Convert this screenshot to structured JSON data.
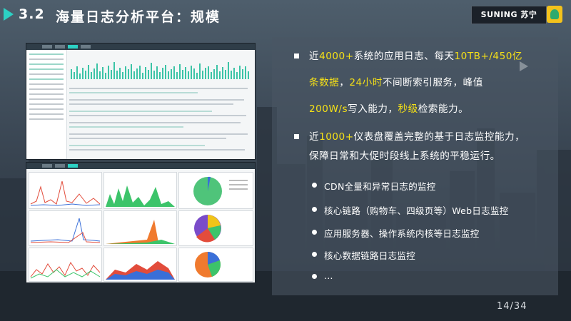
{
  "header": {
    "section_number": "3.2",
    "title": "海量日志分析平台：规模",
    "brand": "SUNING 苏宁"
  },
  "bullets": [
    {
      "lines": [
        [
          {
            "t": "近"
          },
          {
            "t": "4000+",
            "hl": true
          },
          {
            "t": "系统的应用日志、每天"
          },
          {
            "t": "10TB+/450亿",
            "hl": true
          }
        ],
        [
          {
            "t": "条数据",
            "hl": true
          },
          {
            "t": "，"
          },
          {
            "t": "24小时",
            "hl": true
          },
          {
            "t": "不间断索引服务，峰值"
          }
        ],
        [
          {
            "t": "200W/s",
            "hl": true
          },
          {
            "t": "写入能力，"
          },
          {
            "t": "秒级",
            "hl": true
          },
          {
            "t": "检索能力。"
          }
        ]
      ]
    },
    {
      "lines": [
        [
          {
            "t": "近"
          },
          {
            "t": "1000+",
            "hl": true
          },
          {
            "t": "仪表盘覆盖完整的基于日志监控能力，"
          }
        ],
        [
          {
            "t": "保障日常和大促时段线上系统的平稳运行。"
          }
        ]
      ]
    }
  ],
  "sub_bullets": [
    "CDN全量和异常日志的监控",
    "核心链路（购物车、四级页等）Web日志监控",
    "应用服务器、操作系统内核等日志监控",
    "核心数据链路日志监控",
    "…"
  ],
  "page_indicator": "14/34",
  "colors": {
    "highlight": "#f5e017",
    "accent": "#2cd1c4",
    "panel": "#4a5764"
  }
}
